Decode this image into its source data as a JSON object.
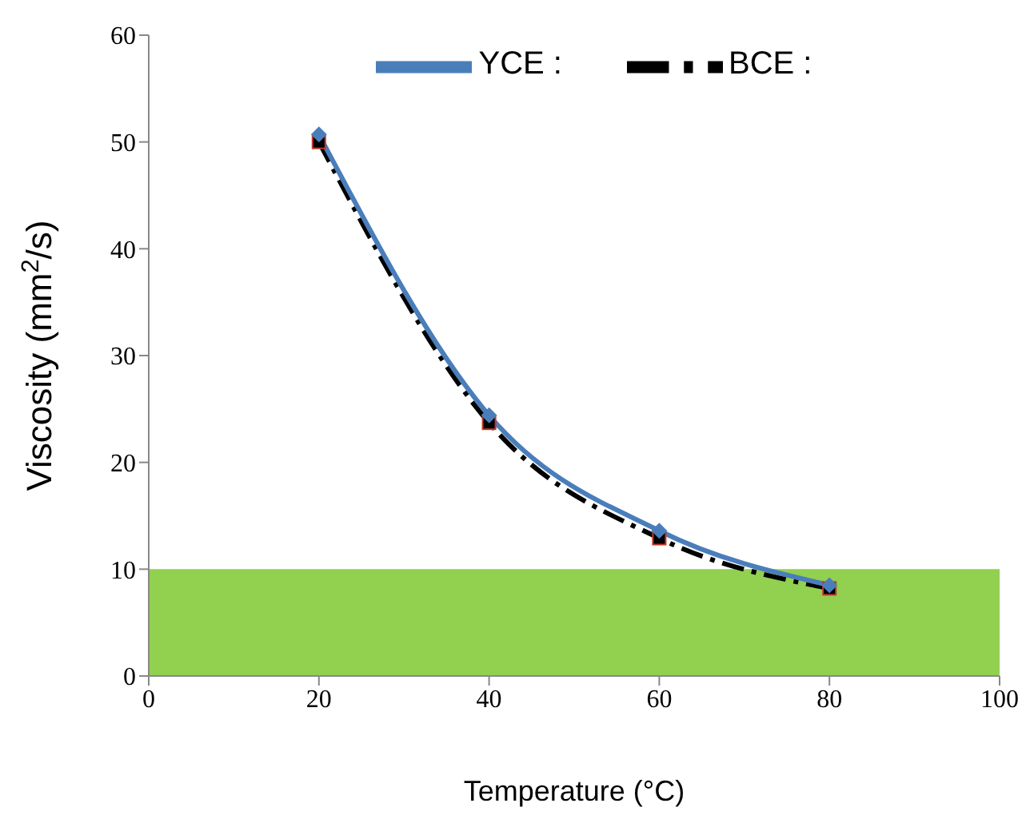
{
  "chart_data": {
    "type": "line",
    "xlabel": "Temperature (°C)",
    "ylabel": "Viscosity (mm$^{2}$/s)",
    "x": [
      20,
      40,
      60,
      80
    ],
    "series": [
      {
        "name": "YCE :",
        "color": "#4a7ebb",
        "values": [
          50.7,
          24.4,
          13.6,
          8.5
        ],
        "marker": "diamond",
        "line_style": "solid"
      },
      {
        "name": "BCE :",
        "color": "#000000",
        "values": [
          50.0,
          23.7,
          12.9,
          8.2
        ],
        "marker": "square",
        "line_style": "dashed"
      }
    ],
    "xlim": [
      0,
      100
    ],
    "xticks": [
      0,
      20,
      40,
      60,
      80,
      100
    ],
    "ylim": [
      0,
      60
    ],
    "yticks": [
      0,
      10,
      20,
      30,
      40,
      50,
      60
    ],
    "bands": [
      {
        "axis": "y",
        "from": 0,
        "to": 10,
        "color": "#92d050"
      }
    ],
    "legend": "top"
  }
}
